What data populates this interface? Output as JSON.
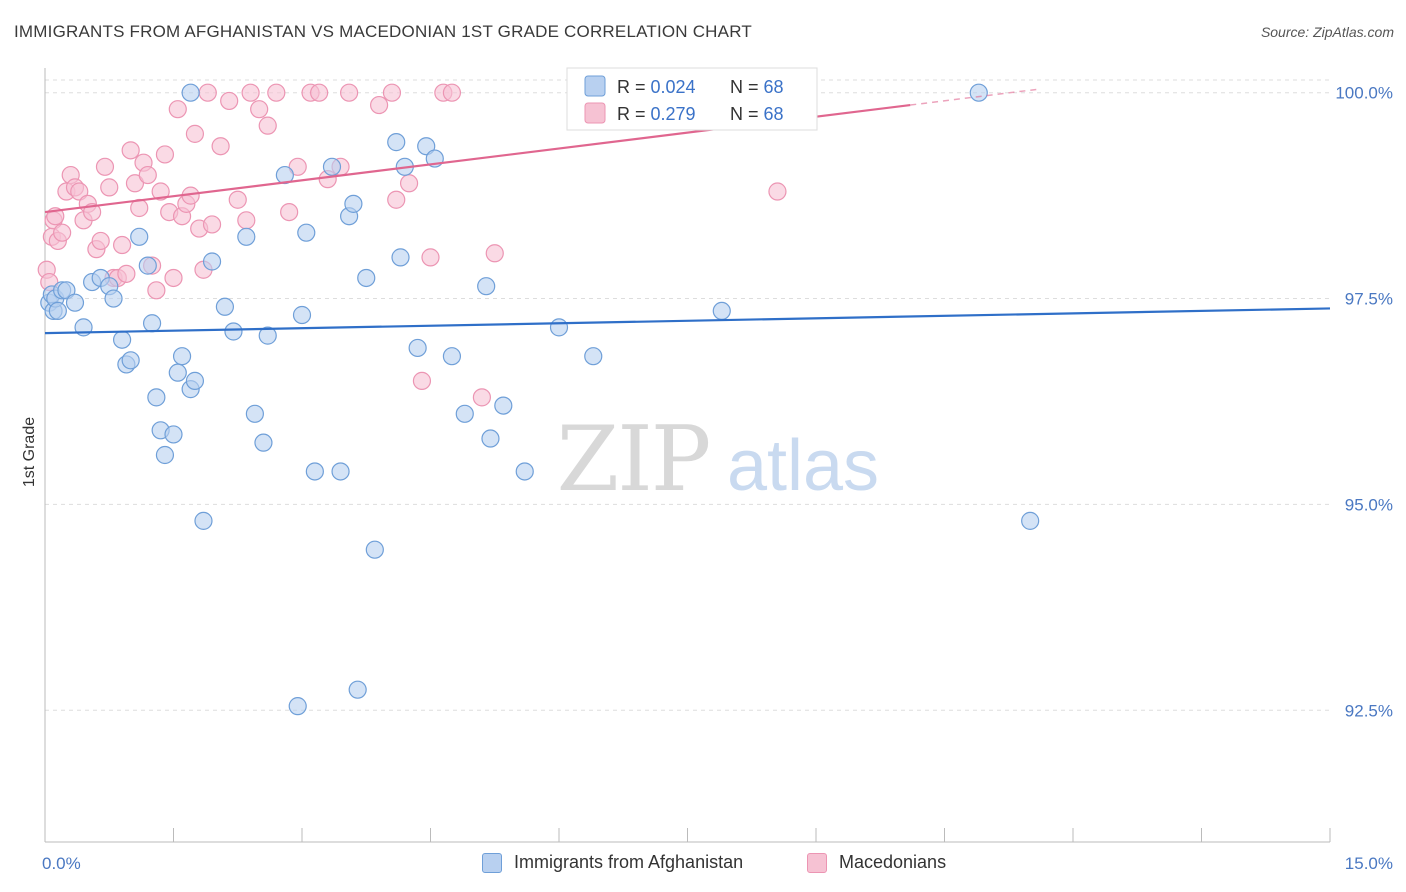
{
  "header": {
    "title": "IMMIGRANTS FROM AFGHANISTAN VS MACEDONIAN 1ST GRADE CORRELATION CHART",
    "source": "Source: ZipAtlas.com"
  },
  "watermark": {
    "zip": "ZIP",
    "atlas": "atlas"
  },
  "colors": {
    "blue_fill": "#b8d0f0",
    "blue_stroke": "#6f9fd8",
    "blue_line": "#2f6fc8",
    "pink_fill": "#f6c2d3",
    "pink_stroke": "#ec95b3",
    "pink_line": "#e0668f",
    "axis_text": "#4a78c2",
    "grid": "#dddddd"
  },
  "stats_legend": {
    "rows": [
      {
        "r_label": "R = ",
        "r_value": "0.024",
        "n_label": "N = ",
        "n_value": "68",
        "series": "blue"
      },
      {
        "r_label": "R = ",
        "r_value": "0.279",
        "n_label": "N = ",
        "n_value": "68",
        "series": "pink"
      }
    ]
  },
  "bottom_legend": {
    "items": [
      {
        "label": "Immigrants from Afghanistan",
        "series": "blue"
      },
      {
        "label": "Macedonians",
        "series": "pink"
      }
    ]
  },
  "chart_data": {
    "type": "scatter",
    "title": "IMMIGRANTS FROM AFGHANISTAN VS MACEDONIAN 1ST GRADE CORRELATION CHART",
    "xlabel": "",
    "ylabel": "1st Grade",
    "xlim": [
      0,
      15
    ],
    "ylim": [
      90.9,
      100.3
    ],
    "x_tick_labels": [
      "0.0%",
      "15.0%"
    ],
    "y_ticks": [
      92.5,
      95.0,
      97.5,
      100.0
    ],
    "y_tick_labels": [
      "92.5%",
      "95.0%",
      "97.5%",
      "100.0%"
    ],
    "grid": "horizontal dashed",
    "series": [
      {
        "name": "Immigrants from Afghanistan",
        "color": "#6f9fd8",
        "trend": {
          "x": [
            0,
            15
          ],
          "y": [
            97.08,
            97.38
          ]
        },
        "points": [
          [
            0.05,
            97.45
          ],
          [
            0.08,
            97.55
          ],
          [
            0.1,
            97.35
          ],
          [
            0.12,
            97.5
          ],
          [
            0.15,
            97.35
          ],
          [
            0.2,
            97.6
          ],
          [
            0.25,
            97.6
          ],
          [
            0.35,
            97.45
          ],
          [
            0.45,
            97.15
          ],
          [
            0.55,
            97.7
          ],
          [
            0.65,
            97.75
          ],
          [
            0.75,
            97.65
          ],
          [
            0.8,
            97.5
          ],
          [
            0.9,
            97.0
          ],
          [
            0.95,
            96.7
          ],
          [
            1.0,
            96.75
          ],
          [
            1.1,
            98.25
          ],
          [
            1.2,
            97.9
          ],
          [
            1.25,
            97.2
          ],
          [
            1.3,
            96.3
          ],
          [
            1.35,
            95.9
          ],
          [
            1.4,
            95.6
          ],
          [
            1.5,
            95.85
          ],
          [
            1.55,
            96.6
          ],
          [
            1.6,
            96.8
          ],
          [
            1.7,
            96.4
          ],
          [
            1.75,
            96.5
          ],
          [
            1.85,
            94.8
          ],
          [
            1.95,
            97.95
          ],
          [
            2.1,
            97.4
          ],
          [
            2.2,
            97.1
          ],
          [
            2.35,
            98.25
          ],
          [
            2.45,
            96.1
          ],
          [
            2.55,
            95.75
          ],
          [
            2.6,
            97.05
          ],
          [
            2.8,
            99.0
          ],
          [
            2.95,
            92.55
          ],
          [
            3.0,
            97.3
          ],
          [
            3.05,
            98.3
          ],
          [
            3.15,
            95.4
          ],
          [
            3.35,
            99.1
          ],
          [
            3.45,
            95.4
          ],
          [
            3.55,
            98.5
          ],
          [
            3.6,
            98.65
          ],
          [
            3.65,
            92.75
          ],
          [
            3.75,
            97.75
          ],
          [
            3.85,
            94.45
          ],
          [
            4.1,
            99.4
          ],
          [
            4.15,
            98.0
          ],
          [
            4.2,
            99.1
          ],
          [
            4.35,
            96.9
          ],
          [
            4.45,
            99.35
          ],
          [
            4.55,
            99.2
          ],
          [
            4.75,
            96.8
          ],
          [
            4.9,
            96.1
          ],
          [
            5.15,
            97.65
          ],
          [
            5.2,
            95.8
          ],
          [
            5.35,
            96.2
          ],
          [
            5.6,
            95.4
          ],
          [
            6.0,
            97.15
          ],
          [
            6.4,
            96.8
          ],
          [
            7.3,
            100.0
          ],
          [
            7.45,
            100.0
          ],
          [
            7.85,
            100.0
          ],
          [
            7.9,
            97.35
          ],
          [
            10.9,
            100.0
          ],
          [
            11.5,
            94.8
          ],
          [
            1.7,
            100.0
          ]
        ]
      },
      {
        "name": "Macedonians",
        "color": "#ec95b3",
        "trend": {
          "x": [
            0,
            10.1
          ],
          "y": [
            98.55,
            99.85
          ]
        },
        "points": [
          [
            0.02,
            97.85
          ],
          [
            0.05,
            97.7
          ],
          [
            0.08,
            98.25
          ],
          [
            0.1,
            98.45
          ],
          [
            0.12,
            98.5
          ],
          [
            0.15,
            98.2
          ],
          [
            0.2,
            98.3
          ],
          [
            0.25,
            98.8
          ],
          [
            0.3,
            99.0
          ],
          [
            0.35,
            98.85
          ],
          [
            0.4,
            98.8
          ],
          [
            0.45,
            98.45
          ],
          [
            0.5,
            98.65
          ],
          [
            0.55,
            98.55
          ],
          [
            0.6,
            98.1
          ],
          [
            0.65,
            98.2
          ],
          [
            0.7,
            99.1
          ],
          [
            0.75,
            98.85
          ],
          [
            0.8,
            97.75
          ],
          [
            0.85,
            97.75
          ],
          [
            0.9,
            98.15
          ],
          [
            0.95,
            97.8
          ],
          [
            1.0,
            99.3
          ],
          [
            1.05,
            98.9
          ],
          [
            1.1,
            98.6
          ],
          [
            1.15,
            99.15
          ],
          [
            1.2,
            99.0
          ],
          [
            1.25,
            97.9
          ],
          [
            1.3,
            97.6
          ],
          [
            1.35,
            98.8
          ],
          [
            1.4,
            99.25
          ],
          [
            1.45,
            98.55
          ],
          [
            1.5,
            97.75
          ],
          [
            1.55,
            99.8
          ],
          [
            1.6,
            98.5
          ],
          [
            1.65,
            98.65
          ],
          [
            1.7,
            98.75
          ],
          [
            1.75,
            99.5
          ],
          [
            1.8,
            98.35
          ],
          [
            1.85,
            97.85
          ],
          [
            1.9,
            100.0
          ],
          [
            1.95,
            98.4
          ],
          [
            2.05,
            99.35
          ],
          [
            2.15,
            99.9
          ],
          [
            2.25,
            98.7
          ],
          [
            2.35,
            98.45
          ],
          [
            2.4,
            100.0
          ],
          [
            2.5,
            99.8
          ],
          [
            2.6,
            99.6
          ],
          [
            2.7,
            100.0
          ],
          [
            2.85,
            98.55
          ],
          [
            2.95,
            99.1
          ],
          [
            3.1,
            100.0
          ],
          [
            3.2,
            100.0
          ],
          [
            3.3,
            98.95
          ],
          [
            3.45,
            99.1
          ],
          [
            3.55,
            100.0
          ],
          [
            3.9,
            99.85
          ],
          [
            4.05,
            100.0
          ],
          [
            4.1,
            98.7
          ],
          [
            4.25,
            98.9
          ],
          [
            4.4,
            96.5
          ],
          [
            4.5,
            98.0
          ],
          [
            4.65,
            100.0
          ],
          [
            4.75,
            100.0
          ],
          [
            5.1,
            96.3
          ],
          [
            5.25,
            98.05
          ],
          [
            8.55,
            98.8
          ]
        ]
      }
    ]
  }
}
